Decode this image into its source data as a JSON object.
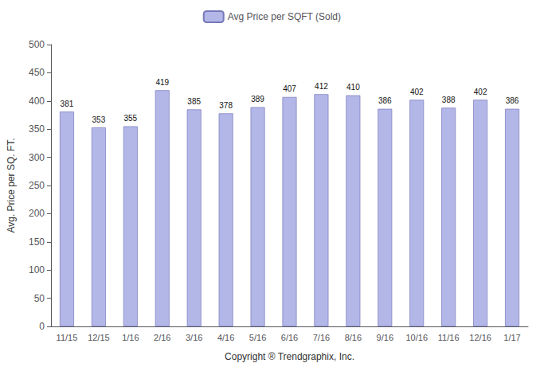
{
  "chart_data": {
    "type": "bar",
    "categories": [
      "11/15",
      "12/15",
      "1/16",
      "2/16",
      "3/16",
      "4/16",
      "5/16",
      "6/16",
      "7/16",
      "8/16",
      "9/16",
      "10/16",
      "11/16",
      "12/16",
      "1/17"
    ],
    "series": [
      {
        "name": "Avg Price per SQFT (Sold)",
        "color": "#b3b7e8",
        "values": [
          381,
          353,
          355,
          419,
          385,
          378,
          389,
          407,
          412,
          410,
          386,
          402,
          388,
          402,
          386
        ]
      }
    ],
    "xlabel": "Copyright ® Trendgraphix, Inc.",
    "ylabel": "Avg. Price per SQ. FT.",
    "ylim": [
      0,
      500
    ],
    "yticks": [
      0,
      50,
      100,
      150,
      200,
      250,
      300,
      350,
      400,
      450,
      500
    ],
    "grid": false,
    "legend": "top",
    "data_labels": true
  }
}
